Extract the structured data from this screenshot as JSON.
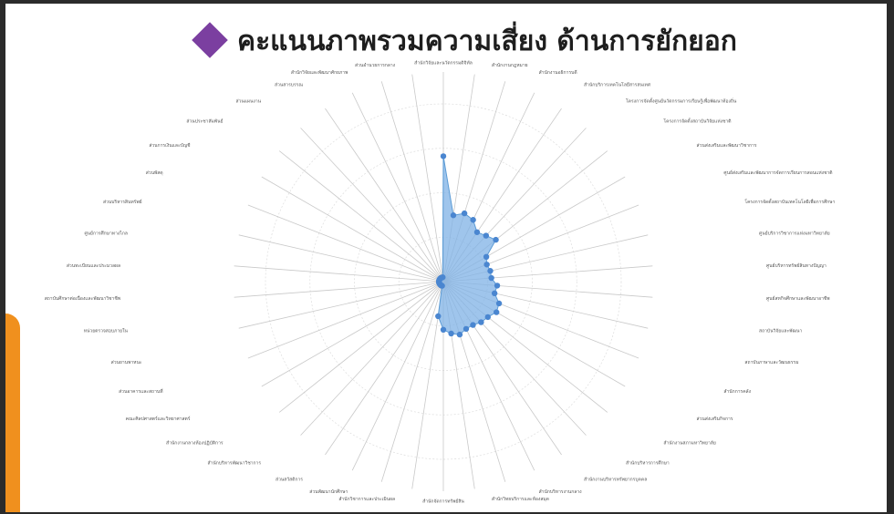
{
  "slide": {
    "title": "คะแนนภาพรวมความเสี่ยง ด้านการยักยอก",
    "colors": {
      "accent": "#f0901e",
      "marker": "#7b3fa0",
      "series": "#5b9bd5"
    }
  },
  "chart_data": {
    "type": "radar",
    "title": "คะแนนภาพรวมความเสี่ยง ด้านการยักยอก",
    "categories": [
      "สำนักวิจัยและนวัตกรรมดิจิทัล",
      "สำนักงานกฎหมาย",
      "สำนักงานอธิการบดี",
      "สำนักบริการเทคโนโลยีสารสนเทศ",
      "โครงการจัดตั้งศูนย์นวัตกรรมการเรียนรู้เพื่อพัฒนาท้องถิ่น",
      "โครงการจัดตั้งสถาบันวิจัยแห่งชาติ",
      "ส่วนส่งเสริมและพัฒนาวิชาการ",
      "ศูนย์ส่งเสริมและพัฒนาการจัดการเรียนการสอนแห่งชาติ",
      "โครงการจัดตั้งสถาบันเทคโนโลยีเพื่อการศึกษา",
      "ศูนย์บริการวิชาการแห่งมหาวิทยาลัย",
      "ศูนย์บริหารทรัพย์สินทางปัญญา",
      "ศูนย์สหกิจศึกษาและพัฒนาอาชีพ",
      "สถาบันวิจัยและพัฒนา",
      "สถาบันภาษาและวัฒนธรรม",
      "สำนักการคลัง",
      "ส่วนส่งเสริมกิจการ",
      "สำนักงานสภามหาวิทยาลัย",
      "สำนักบริหารการศึกษา",
      "สำนักงานบริหารทรัพยากรบุคคล",
      "สำนักบริหารงานกลาง",
      "สำนักวิทยบริการและห้องสมุด",
      "สำนักจัดการทรัพย์สิน",
      "สำนักวิชาการและประเมินผล",
      "ส่วนพัฒนานักศึกษา",
      "ส่วนสวัสดิการ",
      "สำนักบริหารพัฒนาวิชาการ",
      "สำนักงานกลางห้องปฏิบัติการ",
      "คณะศิลปศาสตร์และวิทยาศาสตร์",
      "ส่วนอาคารและสถานที่",
      "ส่วนยานพาหนะ",
      "หน่วยตรวจสอบภายใน",
      "สถาบันศึกษาต่อเนื่องและพัฒนาวิชาชีพ",
      "ส่วนทะเบียนและประมวลผล",
      "ศูนย์การศึกษาทางไกล",
      "ส่วนบริหารสินทรัพย์",
      "ส่วนพัสดุ",
      "ส่วนการเงินและบัญชี",
      "ส่วนประชาสัมพันธ์",
      "ส่วนแผนงาน",
      "ส่วนสารบรรณ",
      "สำนักวิจัยและพัฒนาศักยภาพ",
      "ส่วนอำนวยการกลาง"
    ],
    "series": [
      {
        "values": [
          8.6,
          4.6,
          4.9,
          4.7,
          4.1,
          4.3,
          4.6,
          3.4,
          3.2,
          3.3,
          3.3,
          3.7,
          3.6,
          4.1,
          4.2,
          3.9,
          3.8,
          3.6,
          3.6,
          3.8,
          3.6,
          3.3,
          2.4,
          0.3,
          0.3,
          0.3,
          0.3,
          0.3,
          0.3,
          0.3,
          0.3,
          0.3,
          0.3,
          0.3,
          0.3,
          0.3,
          0.3,
          0.3,
          0.3,
          0.3,
          0.3,
          0.3
        ]
      }
    ],
    "rlim": [
      0,
      20
    ],
    "grid": true,
    "legend": "none"
  }
}
